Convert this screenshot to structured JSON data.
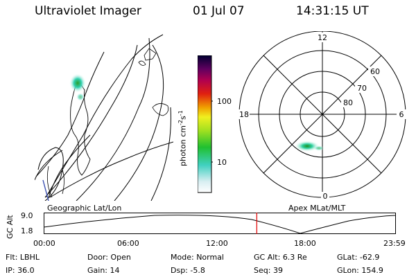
{
  "header": {
    "title": "Ultraviolet Imager",
    "date": "01 Jul 07",
    "time": "14:31:15 UT"
  },
  "colorbar": {
    "label": "photon cm",
    "label_sup": "-2",
    "label_s": "s",
    "label_sup2": "-1",
    "ticks": [
      "100",
      "10"
    ]
  },
  "polar": {
    "mlt_labels": [
      "12",
      "18",
      "6",
      "0"
    ],
    "lat_labels": [
      "60",
      "70",
      "80"
    ]
  },
  "panels": {
    "left_caption": "Geographic Lat/Lon",
    "right_caption": "Apex MLat/MLT"
  },
  "altitude_plot": {
    "ylabel": "GC Alt",
    "y_ticks": [
      "9.0",
      "1.8"
    ],
    "x_ticks": [
      "00:00",
      "06:00",
      "12:00",
      "18:00",
      "23:59"
    ],
    "current_time_marker_hour": 14.52
  },
  "status": {
    "row1": [
      {
        "label": "Flt:",
        "value": "LBHL"
      },
      {
        "label": "Door:",
        "value": "Open"
      },
      {
        "label": "Mode:",
        "value": "Normal"
      },
      {
        "label": "GC Alt:",
        "value": "6.3 Re"
      },
      {
        "label": "GLat:",
        "value": "-62.9"
      }
    ],
    "row2": [
      {
        "label": "IP:",
        "value": "36.0"
      },
      {
        "label": "Gain:",
        "value": "14"
      },
      {
        "label": "Dsp:",
        "value": "-5.8"
      },
      {
        "label": "Seq:",
        "value": "39"
      },
      {
        "label": "GLon:",
        "value": "154.9"
      }
    ]
  },
  "colors": {
    "marker": "#e00000",
    "ink": "#000000"
  }
}
